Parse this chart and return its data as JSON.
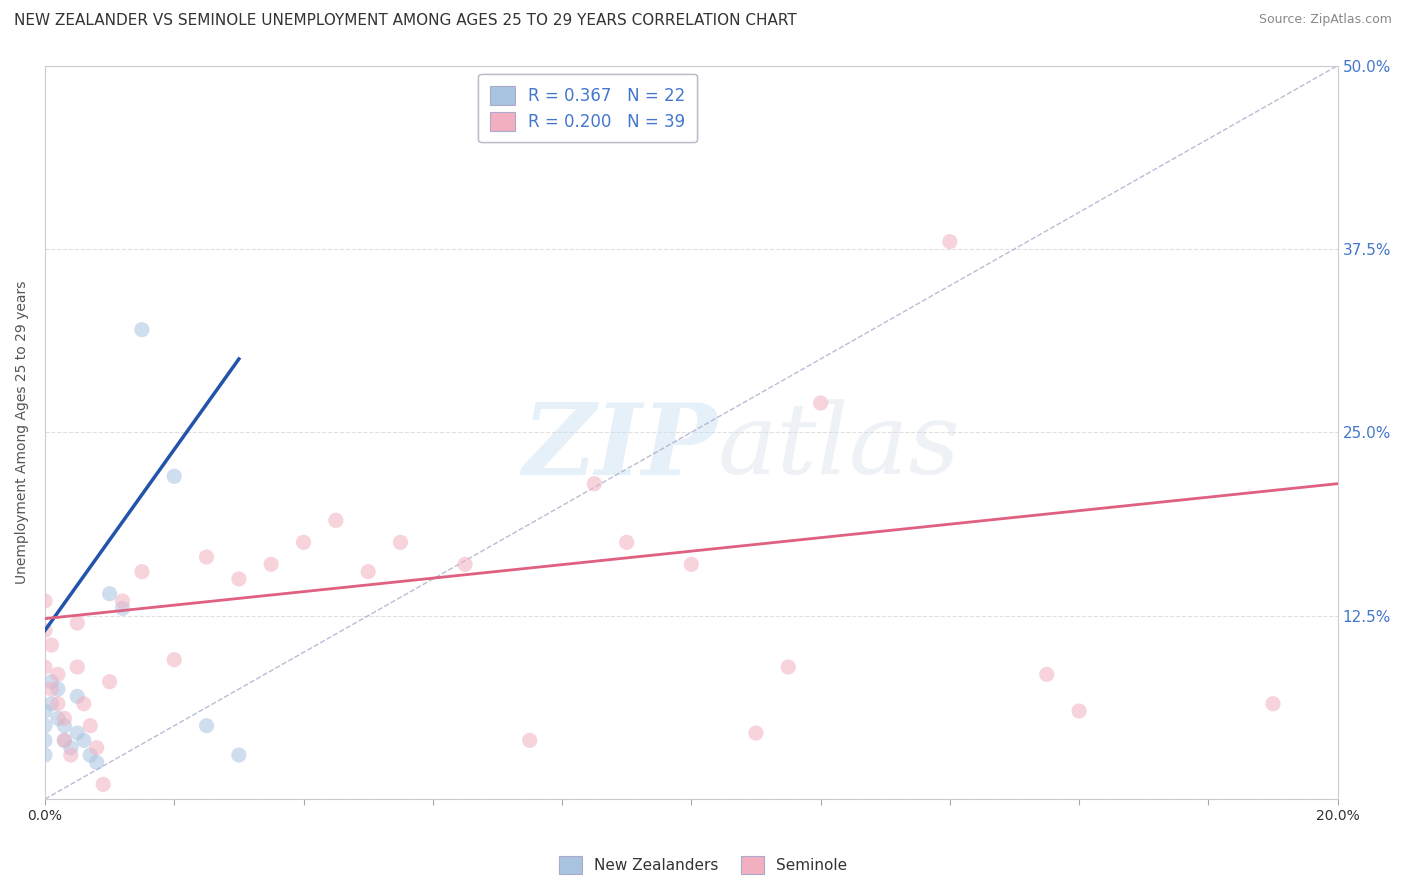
{
  "title": "NEW ZEALANDER VS SEMINOLE UNEMPLOYMENT AMONG AGES 25 TO 29 YEARS CORRELATION CHART",
  "source": "Source: ZipAtlas.com",
  "ylabel": "Unemployment Among Ages 25 to 29 years",
  "xlim": [
    0.0,
    0.2
  ],
  "ylim": [
    0.0,
    0.5
  ],
  "xticks": [
    0.0,
    0.02,
    0.04,
    0.06,
    0.08,
    0.1,
    0.12,
    0.14,
    0.16,
    0.18,
    0.2
  ],
  "yticks": [
    0.0,
    0.125,
    0.25,
    0.375,
    0.5
  ],
  "watermark_zip": "ZIP",
  "watermark_atlas": "atlas",
  "nz_color": "#a8c4e0",
  "seminole_color": "#f2afc0",
  "nz_R": 0.367,
  "nz_N": 22,
  "seminole_R": 0.2,
  "seminole_N": 39,
  "nz_scatter_x": [
    0.0,
    0.0,
    0.0,
    0.0,
    0.001,
    0.001,
    0.002,
    0.002,
    0.003,
    0.003,
    0.004,
    0.005,
    0.005,
    0.006,
    0.007,
    0.008,
    0.01,
    0.012,
    0.015,
    0.02,
    0.025,
    0.03
  ],
  "nz_scatter_y": [
    0.06,
    0.05,
    0.04,
    0.03,
    0.08,
    0.065,
    0.075,
    0.055,
    0.05,
    0.04,
    0.035,
    0.07,
    0.045,
    0.04,
    0.03,
    0.025,
    0.14,
    0.13,
    0.32,
    0.22,
    0.05,
    0.03
  ],
  "seminole_scatter_x": [
    0.0,
    0.0,
    0.0,
    0.001,
    0.001,
    0.002,
    0.002,
    0.003,
    0.003,
    0.004,
    0.005,
    0.005,
    0.006,
    0.007,
    0.008,
    0.009,
    0.01,
    0.012,
    0.015,
    0.02,
    0.025,
    0.03,
    0.035,
    0.04,
    0.045,
    0.05,
    0.055,
    0.065,
    0.075,
    0.085,
    0.09,
    0.1,
    0.11,
    0.115,
    0.12,
    0.14,
    0.155,
    0.16,
    0.19
  ],
  "seminole_scatter_y": [
    0.135,
    0.115,
    0.09,
    0.105,
    0.075,
    0.085,
    0.065,
    0.055,
    0.04,
    0.03,
    0.12,
    0.09,
    0.065,
    0.05,
    0.035,
    0.01,
    0.08,
    0.135,
    0.155,
    0.095,
    0.165,
    0.15,
    0.16,
    0.175,
    0.19,
    0.155,
    0.175,
    0.16,
    0.04,
    0.215,
    0.175,
    0.16,
    0.045,
    0.09,
    0.27,
    0.38,
    0.085,
    0.06,
    0.065
  ],
  "background_color": "#ffffff",
  "grid_color": "#e0e0e0",
  "title_fontsize": 11,
  "label_fontsize": 10,
  "tick_fontsize": 10,
  "scatter_size": 120,
  "scatter_alpha": 0.55,
  "nz_line_color": "#2255aa",
  "seminole_line_color": "#e06080",
  "diag_line_color": "#aaaacc",
  "nz_line_x": [
    0.0,
    0.03
  ],
  "nz_line_y": [
    0.115,
    0.3
  ],
  "sem_line_x": [
    0.0,
    0.2
  ],
  "sem_line_y": [
    0.123,
    0.215
  ]
}
